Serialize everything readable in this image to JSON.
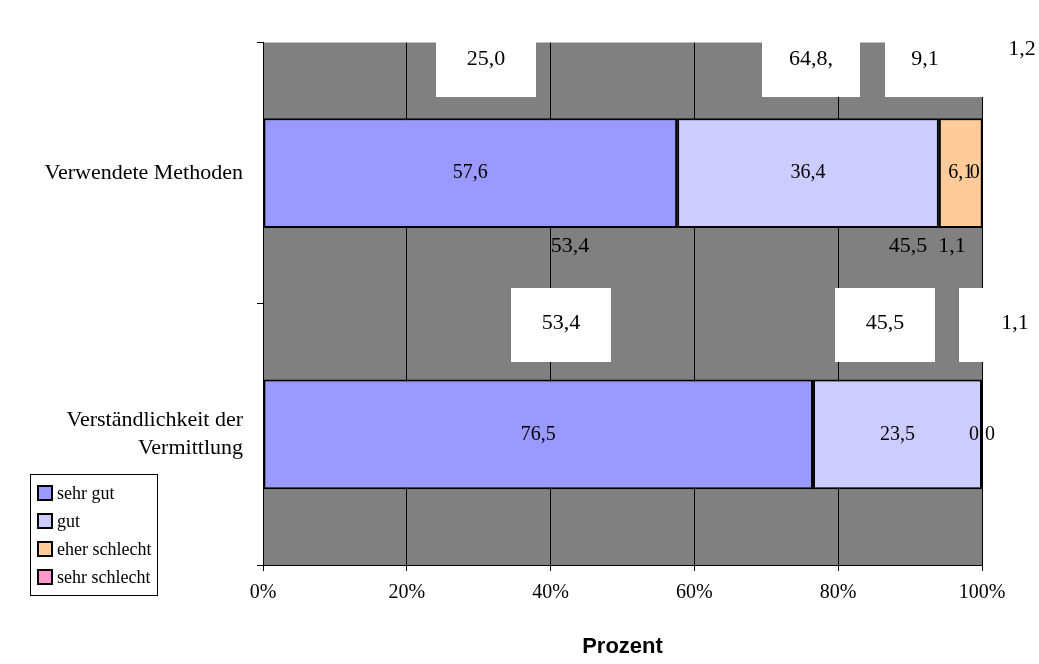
{
  "chart_data": {
    "type": "bar",
    "orientation": "horizontal",
    "stacked": true,
    "categories": [
      "Verwendete Methoden",
      "Verständlichkeit der Vermittlung"
    ],
    "series": [
      {
        "name": "sehr gut",
        "color": "#9999ff",
        "values": [
          57.6,
          76.5
        ],
        "value_labels": [
          "57,6",
          "76,5"
        ]
      },
      {
        "name": "gut",
        "color": "#ccccff",
        "values": [
          36.4,
          23.5
        ],
        "value_labels": [
          "36,4",
          "23,5"
        ]
      },
      {
        "name": "eher schlecht",
        "color": "#ffcc99",
        "values": [
          6.1,
          0
        ],
        "value_labels": [
          "6,1",
          "0"
        ]
      },
      {
        "name": "sehr schlecht",
        "color": "#ff99cc",
        "values": [
          0,
          0
        ],
        "value_labels": [
          "0",
          "0"
        ]
      }
    ],
    "xlim": [
      0,
      100
    ],
    "xticks": [
      {
        "value": 0,
        "label": "0%"
      },
      {
        "value": 20,
        "label": "20%"
      },
      {
        "value": 40,
        "label": "40%"
      },
      {
        "value": 60,
        "label": "60%"
      },
      {
        "value": 80,
        "label": "80%"
      },
      {
        "value": 100,
        "label": "100%"
      }
    ],
    "xlabel": "Prozent",
    "annotations": [
      "25,0",
      "64,8,",
      "9,1",
      "1,2",
      "53,4",
      "45,5",
      "1,1",
      "53,4",
      "45,5",
      "1,1"
    ],
    "grid": "x",
    "legend": "bottom left"
  }
}
